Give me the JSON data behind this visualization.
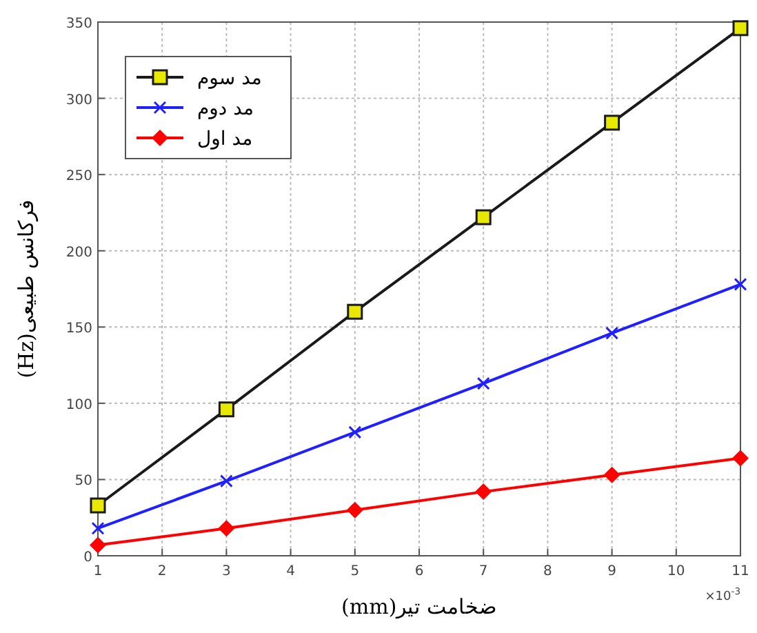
{
  "chart_data": {
    "type": "line",
    "xlabel": "ضخامت تیر(mm)",
    "ylabel": "فرکانس طبیعی(Hz)",
    "x": [
      1,
      3,
      5,
      7,
      9,
      11
    ],
    "series": [
      {
        "name": "مد سوم",
        "color": "#1a1a1a",
        "marker": "square",
        "values": [
          33,
          96,
          160,
          222,
          284,
          346
        ]
      },
      {
        "name": "مد دوم",
        "color": "#2020ff",
        "marker": "cross",
        "values": [
          18,
          49,
          81,
          113,
          146,
          178
        ]
      },
      {
        "name": "مد اول",
        "color": "#ff0000",
        "marker": "diamond",
        "values": [
          7,
          18,
          30,
          42,
          53,
          64
        ]
      }
    ],
    "xlim": [
      1,
      11
    ],
    "xticks": [
      1,
      2,
      3,
      4,
      5,
      6,
      7,
      8,
      9,
      10,
      11
    ],
    "ylim": [
      0,
      350
    ],
    "yticks": [
      0,
      50,
      100,
      150,
      200,
      250,
      300,
      350
    ],
    "grid": true,
    "legend": "top left",
    "line_style": "solid",
    "annotations": [
      "×10$^{-3}$"
    ]
  }
}
